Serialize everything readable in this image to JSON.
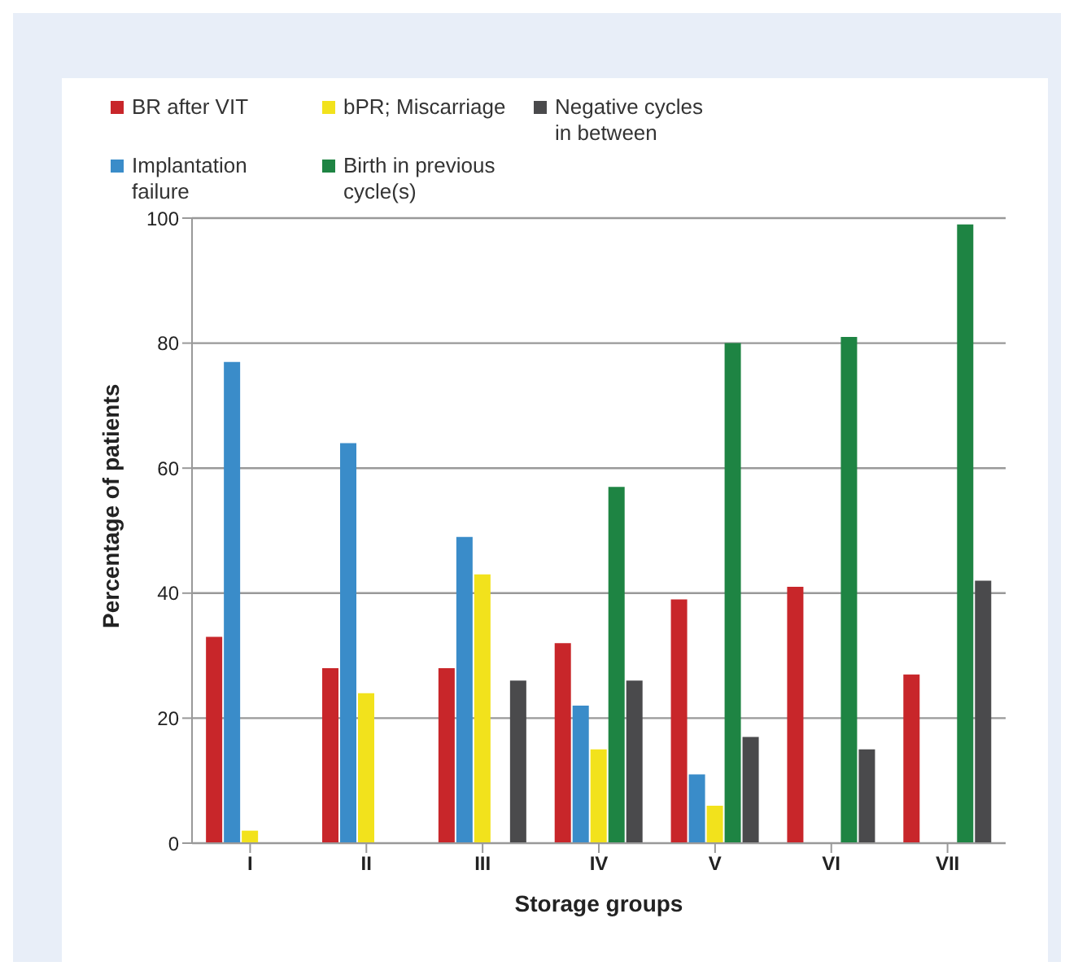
{
  "chart_data": {
    "type": "bar",
    "xlabel": "Storage groups",
    "ylabel": "Percentage of patients",
    "categories": [
      "I",
      "II",
      "III",
      "IV",
      "V",
      "VI",
      "VII"
    ],
    "series": [
      {
        "name": "BR after VIT",
        "color": "#c8262a",
        "values": [
          33,
          28,
          28,
          32,
          39,
          41,
          27
        ]
      },
      {
        "name": "Implantation failure",
        "color": "#3a8cc9",
        "values": [
          77,
          64,
          49,
          22,
          11,
          0,
          0
        ]
      },
      {
        "name": "bPR; Miscarriage",
        "color": "#f2e21c",
        "values": [
          2,
          24,
          43,
          15,
          6,
          0,
          0
        ]
      },
      {
        "name": "Birth in previous cycle(s)",
        "color": "#1e8443",
        "values": [
          0,
          0,
          0,
          57,
          80,
          81,
          99
        ]
      },
      {
        "name": "Negative cycles in between",
        "color": "#4a4a4c",
        "values": [
          0,
          0,
          26,
          26,
          17,
          15,
          42
        ]
      }
    ],
    "ylim": [
      0,
      100
    ],
    "yticks": [
      0,
      20,
      40,
      60,
      80,
      100
    ],
    "grid": "y",
    "legend": "top left"
  }
}
